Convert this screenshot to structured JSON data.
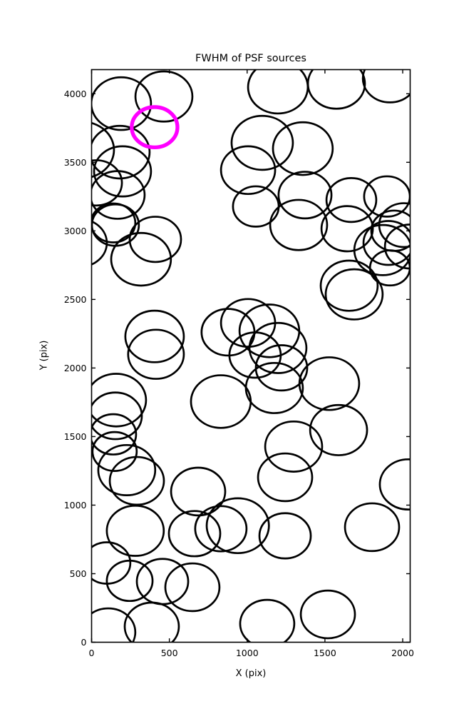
{
  "figure": {
    "background": "#ffffff"
  },
  "chart_data": {
    "type": "scatter",
    "title": "FWHM of PSF sources",
    "xlabel": "X (pix)",
    "ylabel": "Y (pix)",
    "xlim": [
      0,
      2048
    ],
    "ylim": [
      0,
      4176
    ],
    "xticks": [
      0,
      500,
      1000,
      1500,
      2000
    ],
    "yticks": [
      0,
      500,
      1000,
      1500,
      2000,
      2500,
      3000,
      3500,
      4000
    ],
    "grid": false,
    "legend": "none",
    "marker_style": "open-circle",
    "circle_color": "#000000",
    "circle_linewidth": 2.7,
    "highlight_color": "#FF00FF",
    "highlight_linewidth": 5.3,
    "sources": [
      [
        190,
        3928,
        192
      ],
      [
        465,
        3980,
        183
      ],
      [
        181,
        3574,
        192
      ],
      [
        -62,
        3590,
        206
      ],
      [
        199,
        3434,
        183
      ],
      [
        167,
        3262,
        174
      ],
      [
        30,
        3350,
        165
      ],
      [
        139,
        3058,
        142
      ],
      [
        153,
        3042,
        151
      ],
      [
        -76,
        2912,
        174
      ],
      [
        410,
        2938,
        165
      ],
      [
        318,
        2793,
        192
      ],
      [
        1198,
        4048,
        192
      ],
      [
        1574,
        4074,
        183
      ],
      [
        1918,
        4111,
        174
      ],
      [
        1097,
        3642,
        197
      ],
      [
        1358,
        3600,
        192
      ],
      [
        1006,
        3443,
        174
      ],
      [
        1372,
        3261,
        170
      ],
      [
        1331,
        3043,
        183
      ],
      [
        1670,
        3225,
        160
      ],
      [
        1899,
        3251,
        147
      ],
      [
        1643,
        3016,
        165
      ],
      [
        1872,
        2860,
        183
      ],
      [
        1908,
        2912,
        160
      ],
      [
        1945,
        3001,
        147
      ],
      [
        2009,
        3042,
        160
      ],
      [
        2046,
        2886,
        160
      ],
      [
        1918,
        2730,
        128
      ],
      [
        1656,
        2600,
        183
      ],
      [
        1688,
        2537,
        183
      ],
      [
        1056,
        3178,
        147
      ],
      [
        405,
        2230,
        188
      ],
      [
        414,
        2100,
        179
      ],
      [
        877,
        2261,
        170
      ],
      [
        1006,
        2329,
        174
      ],
      [
        1143,
        2271,
        192
      ],
      [
        1198,
        2146,
        183
      ],
      [
        1051,
        2094,
        165
      ],
      [
        1221,
        2001,
        165
      ],
      [
        1528,
        1886,
        192
      ],
      [
        1175,
        1854,
        183
      ],
      [
        831,
        1755,
        192
      ],
      [
        158,
        1766,
        192
      ],
      [
        153,
        1651,
        170
      ],
      [
        139,
        1516,
        147
      ],
      [
        148,
        1391,
        142
      ],
      [
        226,
        1255,
        183
      ],
      [
        291,
        1177,
        174
      ],
      [
        1588,
        1547,
        183
      ],
      [
        1299,
        1427,
        183
      ],
      [
        1244,
        1203,
        174
      ],
      [
        685,
        1099,
        174
      ],
      [
        2036,
        1151,
        183
      ],
      [
        662,
        792,
        165
      ],
      [
        831,
        828,
        165
      ],
      [
        940,
        850,
        200
      ],
      [
        1244,
        776,
        165
      ],
      [
        1803,
        839,
        174
      ],
      [
        281,
        813,
        183
      ],
      [
        98,
        578,
        151
      ],
      [
        245,
        448,
        147
      ],
      [
        456,
        443,
        165
      ],
      [
        648,
        401,
        174
      ],
      [
        107,
        73,
        174
      ],
      [
        387,
        115,
        174
      ],
      [
        1129,
        135,
        174
      ],
      [
        1519,
        203,
        174
      ]
    ],
    "highlight": {
      "x": 405,
      "y": 3756,
      "r": 147
    }
  }
}
